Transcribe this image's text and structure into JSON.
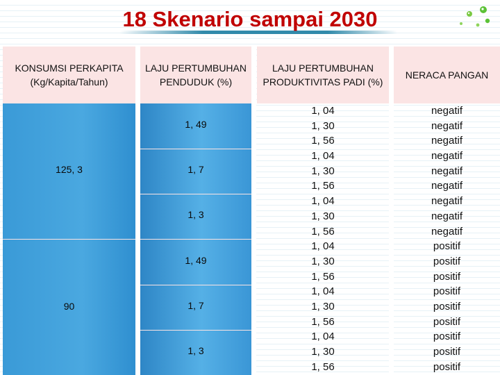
{
  "title": "18 Skenario sampai 2030",
  "headers": {
    "konsumsi": "KONSUMSI PERKAPITA (Kg/Kapita/Tahun)",
    "laju_penduduk": "LAJU PERTUMBUHAN PENDUDUK (%)",
    "laju_produktivitas": "LAJU PERTUMBUHAN PRODUKTIVITAS PADI (%)",
    "neraca": "NERACA PANGAN"
  },
  "konsumsi": [
    "125, 3",
    "90"
  ],
  "laju_penduduk": [
    "1, 49",
    "1, 7",
    "1, 3",
    "1, 49",
    "1, 7",
    "1, 3"
  ],
  "laju_produktivitas": [
    "1, 04",
    "1, 30",
    "1, 56",
    "1, 04",
    "1, 30",
    "1, 56",
    "1, 04",
    "1, 30",
    "1, 56",
    "1, 04",
    "1, 30",
    "1, 56",
    "1, 04",
    "1, 30",
    "1, 56",
    "1, 04",
    "1, 30",
    "1, 56"
  ],
  "neraca": [
    "negatif",
    "negatif",
    "negatif",
    "negatif",
    "negatif",
    "negatif",
    "negatif",
    "negatif",
    "negatif",
    "positif",
    "positif",
    "positif",
    "positif",
    "positif",
    "positif",
    "positif",
    "positif",
    "positif"
  ]
}
